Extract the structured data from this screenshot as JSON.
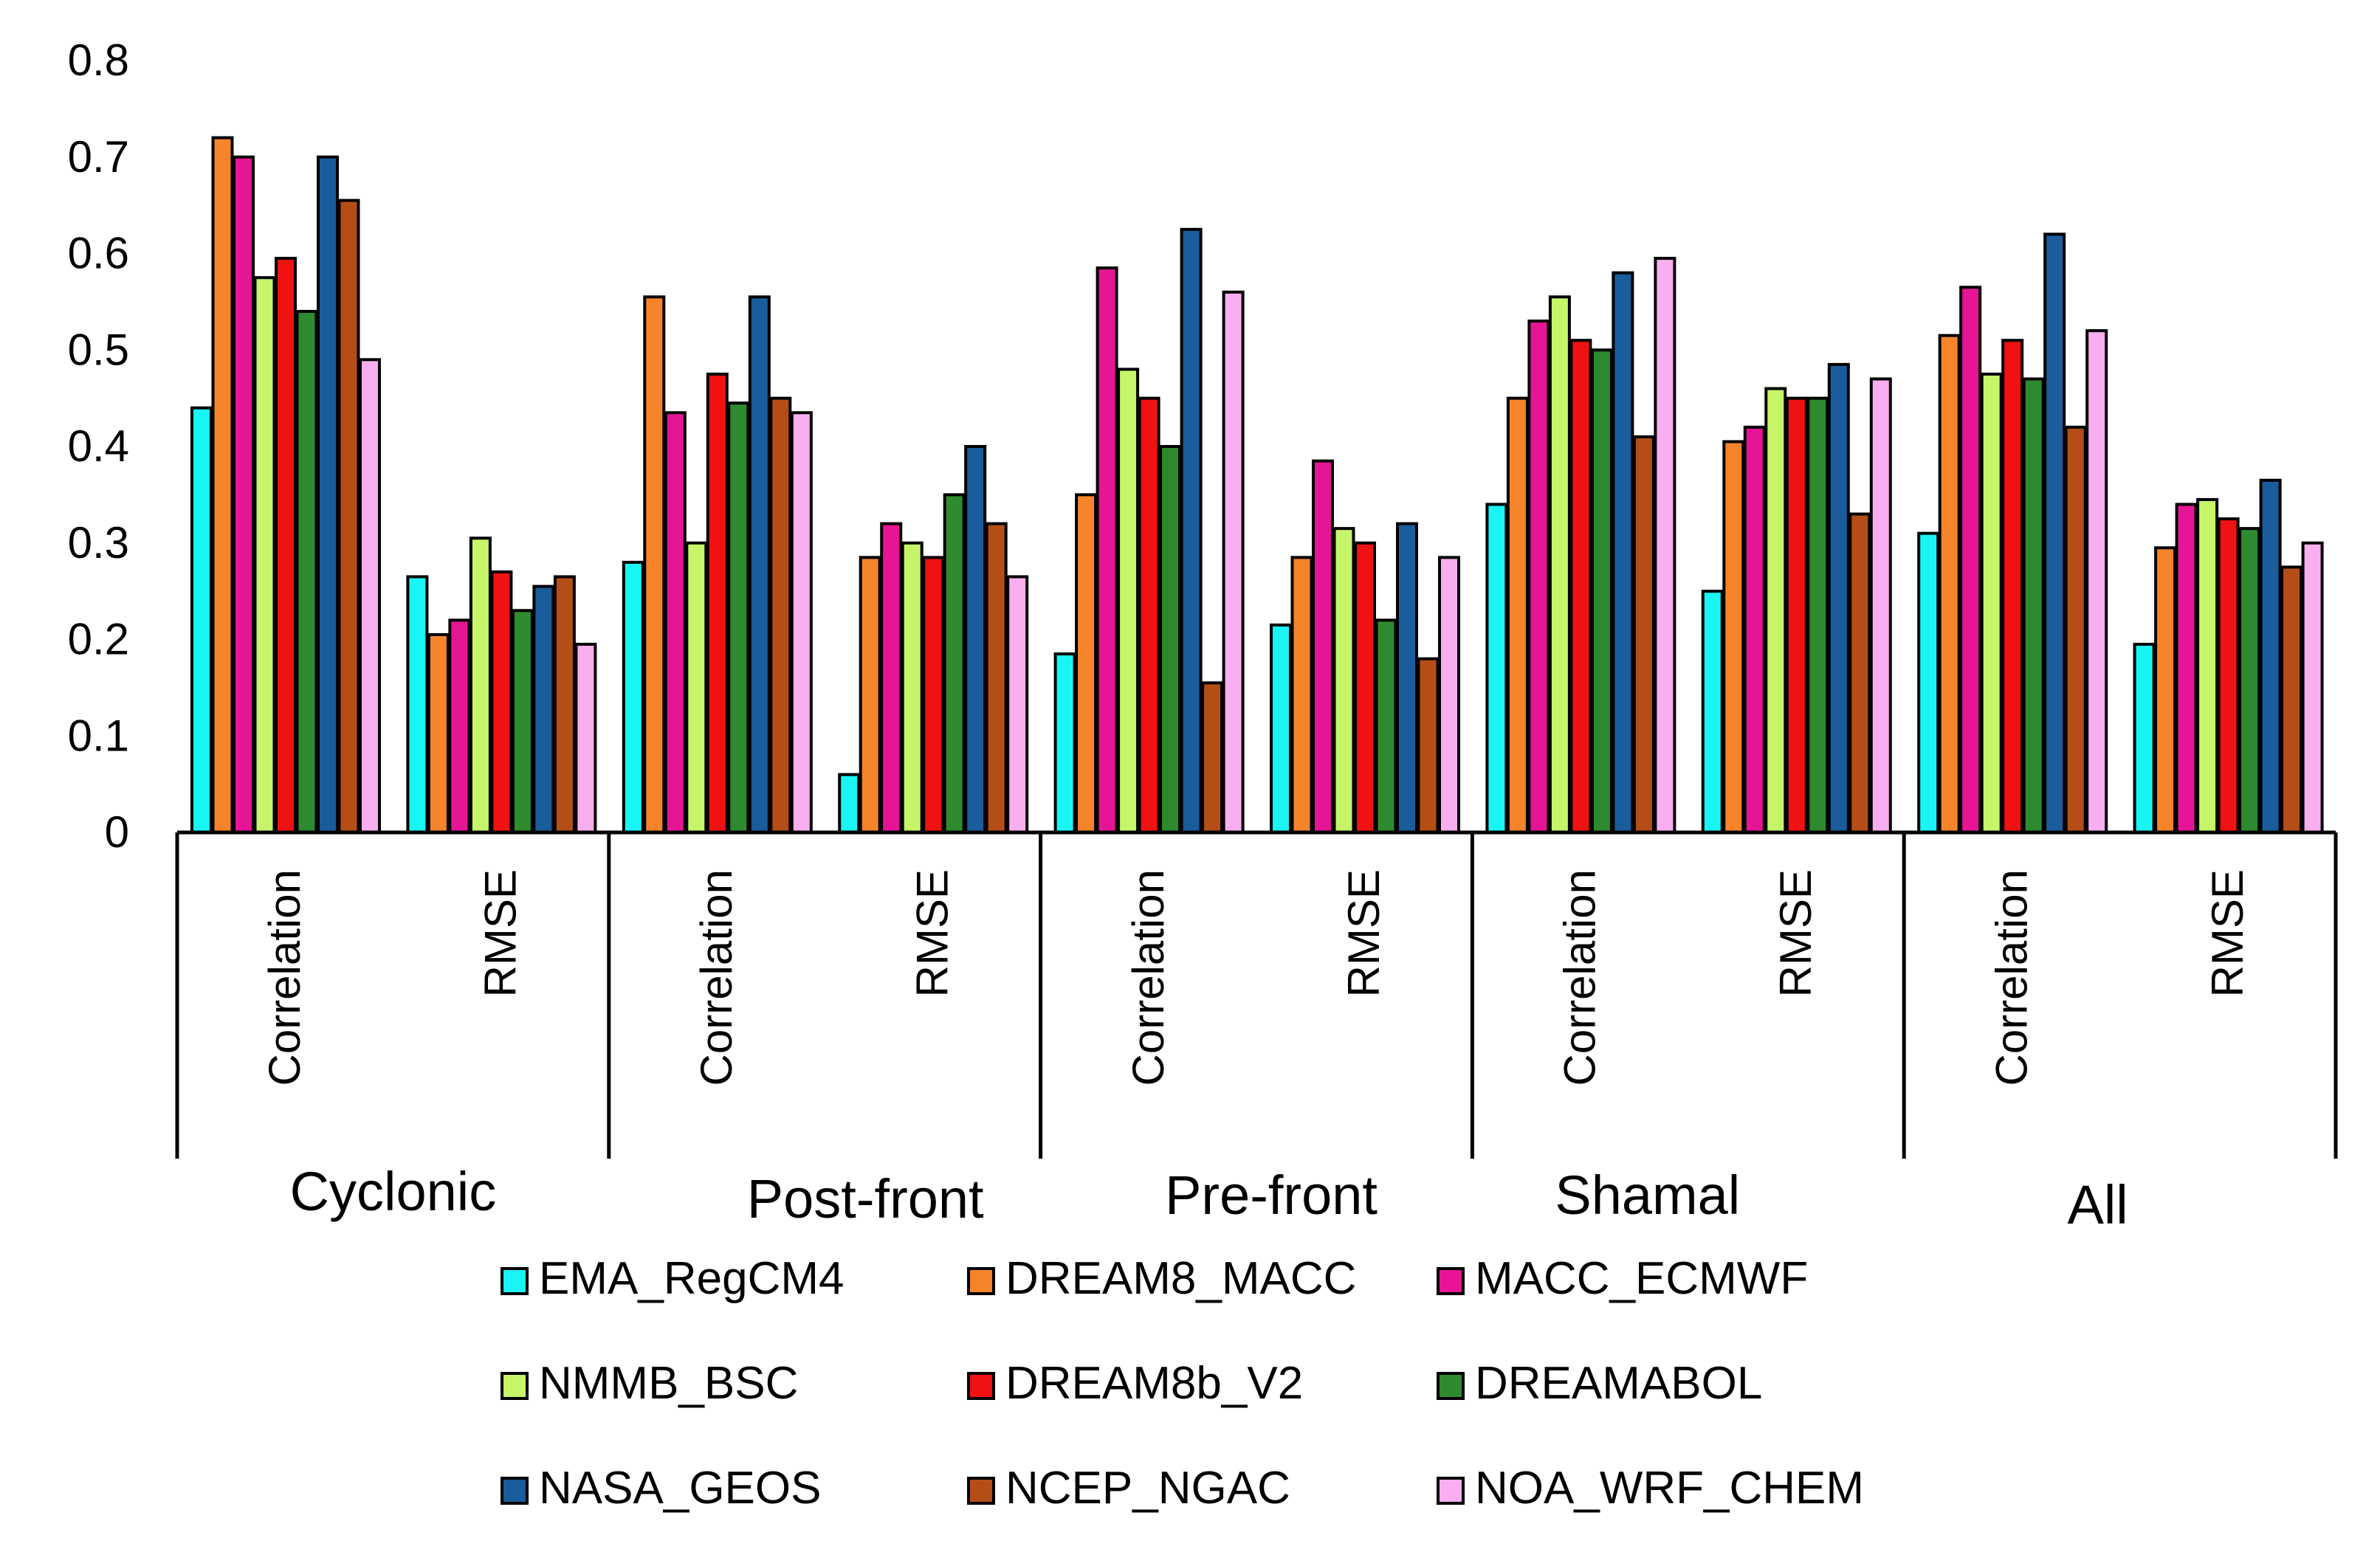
{
  "chart_data": {
    "type": "bar",
    "title": "",
    "xlabel": "",
    "ylabel": "",
    "ylim": [
      0,
      0.8
    ],
    "yticks": [
      "0",
      "0.1",
      "0.2",
      "0.3",
      "0.4",
      "0.5",
      "0.6",
      "0.7",
      "0.8"
    ],
    "groups": [
      {
        "name": "Cyclonic",
        "metrics": [
          "Correlation",
          "RMSE"
        ]
      },
      {
        "name": "Post-front",
        "metrics": [
          "Correlation",
          "RMSE"
        ]
      },
      {
        "name": "Pre-front",
        "metrics": [
          "Correlation",
          "RMSE"
        ]
      },
      {
        "name": "Shamal",
        "metrics": [
          "Correlation",
          "RMSE"
        ]
      },
      {
        "name": "All",
        "metrics": [
          "Correlation",
          "RMSE"
        ]
      }
    ],
    "series": [
      {
        "name": "EMA_RegCM4",
        "color": "#19f5f5",
        "values": [
          0.44,
          0.265,
          0.28,
          0.06,
          0.185,
          0.215,
          0.34,
          0.25,
          0.31,
          0.195
        ]
      },
      {
        "name": "DREAM8_MACC",
        "color": "#f5842a",
        "values": [
          0.72,
          0.205,
          0.555,
          0.285,
          0.35,
          0.285,
          0.45,
          0.405,
          0.515,
          0.295
        ]
      },
      {
        "name": "MACC_ECMWF",
        "color": "#e51595",
        "values": [
          0.7,
          0.22,
          0.435,
          0.32,
          0.585,
          0.385,
          0.53,
          0.42,
          0.565,
          0.34
        ]
      },
      {
        "name": "NMMB_BSC",
        "color": "#c6f56a",
        "values": [
          0.575,
          0.305,
          0.3,
          0.3,
          0.48,
          0.315,
          0.555,
          0.46,
          0.475,
          0.345
        ]
      },
      {
        "name": "DREAM8b_V2",
        "color": "#f01212",
        "values": [
          0.595,
          0.27,
          0.475,
          0.285,
          0.45,
          0.3,
          0.51,
          0.45,
          0.51,
          0.325
        ]
      },
      {
        "name": "DREAMABOL",
        "color": "#2e8a2e",
        "values": [
          0.54,
          0.23,
          0.445,
          0.35,
          0.4,
          0.22,
          0.5,
          0.45,
          0.47,
          0.315
        ]
      },
      {
        "name": "NASA_GEOS",
        "color": "#1a5c9c",
        "values": [
          0.7,
          0.255,
          0.555,
          0.4,
          0.625,
          0.32,
          0.58,
          0.485,
          0.62,
          0.365
        ]
      },
      {
        "name": "NCEP_NGAC",
        "color": "#b54e16",
        "values": [
          0.655,
          0.265,
          0.45,
          0.32,
          0.155,
          0.18,
          0.41,
          0.33,
          0.42,
          0.275
        ]
      },
      {
        "name": "NOA_WRF_CHEM",
        "color": "#f9aef0",
        "values": [
          0.49,
          0.195,
          0.435,
          0.265,
          0.56,
          0.285,
          0.595,
          0.47,
          0.52,
          0.3
        ]
      }
    ],
    "legend_position": "bottom",
    "grid": false
  }
}
